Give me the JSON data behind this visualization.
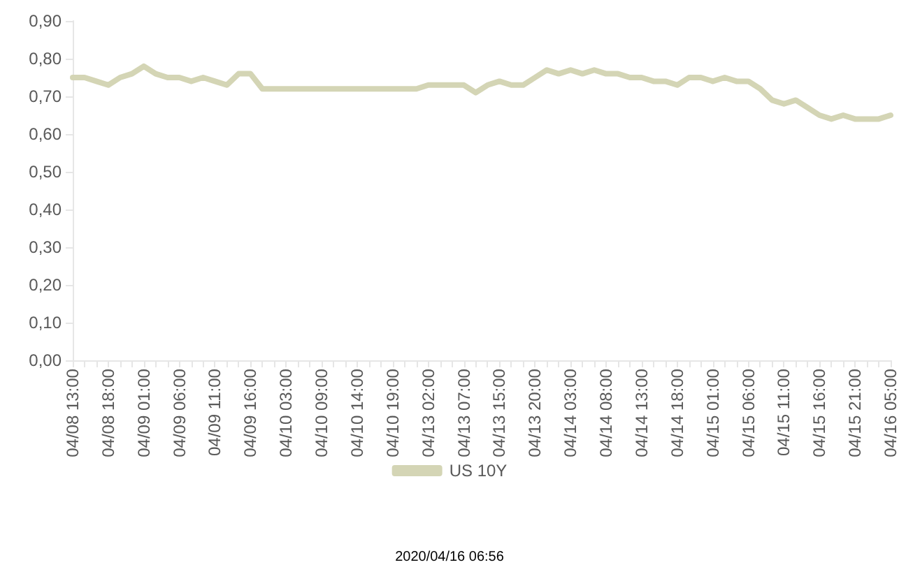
{
  "chart_data": {
    "type": "line",
    "categories": [
      "04/08 13:00",
      null,
      null,
      "04/08 18:00",
      null,
      null,
      "04/09 01:00",
      null,
      null,
      "04/09 06:00",
      null,
      null,
      "04/09 11:00",
      null,
      null,
      "04/09 16:00",
      null,
      null,
      "04/10 03:00",
      null,
      null,
      "04/10 09:00",
      null,
      null,
      "04/10 14:00",
      null,
      null,
      "04/10 19:00",
      null,
      null,
      "04/13 02:00",
      null,
      null,
      "04/13 07:00",
      null,
      null,
      "04/13 15:00",
      null,
      null,
      "04/13 20:00",
      null,
      null,
      "04/14 03:00",
      null,
      null,
      "04/14 08:00",
      null,
      null,
      "04/14 13:00",
      null,
      null,
      "04/14 18:00",
      null,
      null,
      "04/15 01:00",
      null,
      null,
      "04/15 06:00",
      null,
      null,
      "04/15 11:00",
      null,
      null,
      "04/15 16:00",
      null,
      null,
      "04/15 21:00",
      null,
      null,
      "04/16 05:00"
    ],
    "series": [
      {
        "name": "US 10Y",
        "color": "#d4d5b5",
        "values": [
          0.75,
          0.75,
          0.74,
          0.73,
          0.75,
          0.76,
          0.78,
          0.76,
          0.75,
          0.75,
          0.74,
          0.75,
          0.74,
          0.73,
          0.76,
          0.76,
          0.72,
          0.72,
          0.72,
          0.72,
          0.72,
          0.72,
          0.72,
          0.72,
          0.72,
          0.72,
          0.72,
          0.72,
          0.72,
          0.72,
          0.73,
          0.73,
          0.73,
          0.73,
          0.71,
          0.73,
          0.74,
          0.73,
          0.73,
          0.75,
          0.77,
          0.76,
          0.77,
          0.76,
          0.77,
          0.76,
          0.76,
          0.75,
          0.75,
          0.74,
          0.74,
          0.73,
          0.75,
          0.75,
          0.74,
          0.75,
          0.74,
          0.74,
          0.72,
          0.69,
          0.68,
          0.69,
          0.67,
          0.65,
          0.64,
          0.65,
          0.64,
          0.64,
          0.64,
          0.65
        ]
      }
    ],
    "ylim": [
      0,
      0.9
    ],
    "yticks": [
      {
        "value": 0,
        "label": "0,00"
      },
      {
        "value": 0.1,
        "label": "0,10"
      },
      {
        "value": 0.2,
        "label": "0,20"
      },
      {
        "value": 0.3,
        "label": "0,30"
      },
      {
        "value": 0.4,
        "label": "0,40"
      },
      {
        "value": 0.5,
        "label": "0,50"
      },
      {
        "value": 0.6,
        "label": "0,60"
      },
      {
        "value": 0.7,
        "label": "0,70"
      },
      {
        "value": 0.8,
        "label": "0,80"
      },
      {
        "value": 0.9,
        "label": "0,90"
      }
    ],
    "legend": "bottom",
    "line_style": "solid",
    "marker": "none",
    "annotations": [
      "2020/04/16 06:56"
    ]
  }
}
